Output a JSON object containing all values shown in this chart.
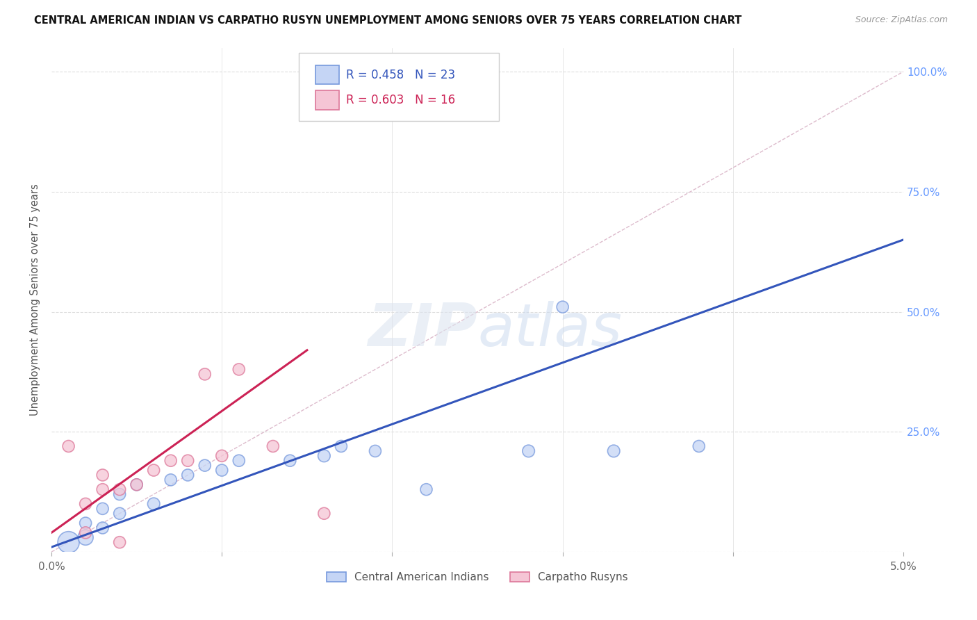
{
  "title": "CENTRAL AMERICAN INDIAN VS CARPATHO RUSYN UNEMPLOYMENT AMONG SENIORS OVER 75 YEARS CORRELATION CHART",
  "source": "Source: ZipAtlas.com",
  "ylabel": "Unemployment Among Seniors over 75 years",
  "watermark": "ZIPatlas",
  "blue_label": "Central American Indians",
  "pink_label": "Carpatho Rusyns",
  "blue_R": "R = 0.458",
  "blue_N": "N = 23",
  "pink_R": "R = 0.603",
  "pink_N": "N = 16",
  "xlim": [
    0.0,
    0.05
  ],
  "ylim": [
    0.0,
    1.05
  ],
  "yticks": [
    0.0,
    0.25,
    0.5,
    0.75,
    1.0
  ],
  "blue_scatter_x": [
    0.001,
    0.002,
    0.002,
    0.003,
    0.003,
    0.004,
    0.004,
    0.005,
    0.006,
    0.007,
    0.008,
    0.009,
    0.01,
    0.011,
    0.014,
    0.016,
    0.017,
    0.019,
    0.022,
    0.028,
    0.03,
    0.033,
    0.038
  ],
  "blue_scatter_y": [
    0.02,
    0.03,
    0.06,
    0.05,
    0.09,
    0.08,
    0.12,
    0.14,
    0.1,
    0.15,
    0.16,
    0.18,
    0.17,
    0.19,
    0.19,
    0.2,
    0.22,
    0.21,
    0.13,
    0.21,
    0.51,
    0.21,
    0.22
  ],
  "blue_scatter_sizes": [
    500,
    250,
    150,
    150,
    150,
    150,
    150,
    150,
    160,
    150,
    150,
    150,
    150,
    150,
    150,
    160,
    150,
    150,
    150,
    160,
    150,
    160,
    150
  ],
  "pink_scatter_x": [
    0.001,
    0.002,
    0.002,
    0.003,
    0.003,
    0.004,
    0.004,
    0.005,
    0.006,
    0.007,
    0.008,
    0.009,
    0.01,
    0.011,
    0.013,
    0.016
  ],
  "pink_scatter_y": [
    0.22,
    0.04,
    0.1,
    0.13,
    0.16,
    0.02,
    0.13,
    0.14,
    0.17,
    0.19,
    0.19,
    0.37,
    0.2,
    0.38,
    0.22,
    0.08
  ],
  "pink_scatter_sizes": [
    150,
    150,
    150,
    150,
    150,
    150,
    150,
    150,
    150,
    150,
    150,
    150,
    150,
    150,
    150,
    150
  ],
  "blue_line_x": [
    0.0,
    0.05
  ],
  "blue_line_y": [
    0.01,
    0.65
  ],
  "pink_line_x": [
    0.0,
    0.015
  ],
  "pink_line_y": [
    0.04,
    0.42
  ],
  "diag_line_x": [
    0.0,
    0.05
  ],
  "diag_line_y": [
    0.0,
    1.0
  ],
  "bg_color": "#ffffff",
  "blue_face_color": "#c5d5f5",
  "blue_edge_color": "#7799dd",
  "pink_face_color": "#f5c5d5",
  "pink_edge_color": "#dd7799",
  "blue_line_color": "#3355bb",
  "pink_line_color": "#cc2255",
  "diag_line_color": "#ddbbcc"
}
